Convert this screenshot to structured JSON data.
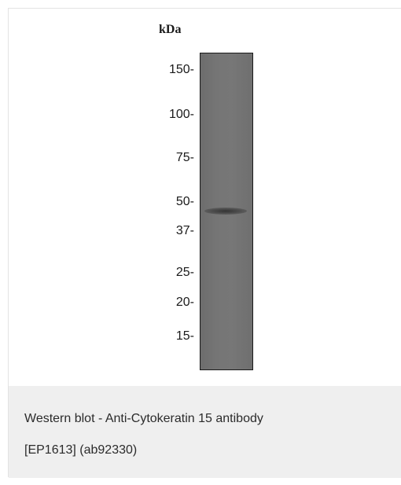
{
  "figure": {
    "unit_label": "kDa",
    "markers": [
      "150-",
      "100-",
      "75-",
      "50-",
      "37-",
      "25-",
      "20-",
      "15-"
    ],
    "band": {
      "lane": 1,
      "approx_kda": 45
    }
  },
  "caption": {
    "line1": "Western blot - Anti-Cytokeratin 15 antibody",
    "line2": "[EP1613] (ab92330)"
  }
}
